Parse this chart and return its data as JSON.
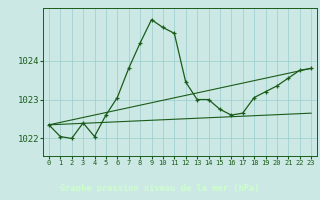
{
  "title": "Graphe pression niveau de la mer (hPa)",
  "bg_color": "#cce8e4",
  "plot_bg_color": "#cce8e4",
  "label_bg_color": "#2d6b2d",
  "grid_color": "#99cccc",
  "line_color": "#1a5c1a",
  "label_text_color": "#ccffcc",
  "xlim": [
    -0.5,
    23.5
  ],
  "ylim": [
    1021.55,
    1025.35
  ],
  "yticks": [
    1022,
    1023,
    1024
  ],
  "xticks": [
    0,
    1,
    2,
    3,
    4,
    5,
    6,
    7,
    8,
    9,
    10,
    11,
    12,
    13,
    14,
    15,
    16,
    17,
    18,
    19,
    20,
    21,
    22,
    23
  ],
  "curve_x": [
    0,
    1,
    2,
    3,
    4,
    5,
    6,
    7,
    8,
    9,
    10,
    11,
    12,
    13,
    14,
    15,
    16,
    17,
    18,
    19,
    20,
    21,
    22,
    23
  ],
  "curve_y": [
    1022.35,
    1022.05,
    1022.0,
    1022.4,
    1022.05,
    1022.6,
    1023.05,
    1023.8,
    1024.45,
    1025.05,
    1024.85,
    1024.7,
    1023.45,
    1023.0,
    1023.0,
    1022.75,
    1022.6,
    1022.65,
    1023.05,
    1023.2,
    1023.35,
    1023.55,
    1023.75,
    1023.8
  ],
  "line1_x": [
    0,
    23
  ],
  "line1_y": [
    1022.35,
    1022.65
  ],
  "line2_x": [
    0,
    23
  ],
  "line2_y": [
    1022.35,
    1023.8
  ]
}
